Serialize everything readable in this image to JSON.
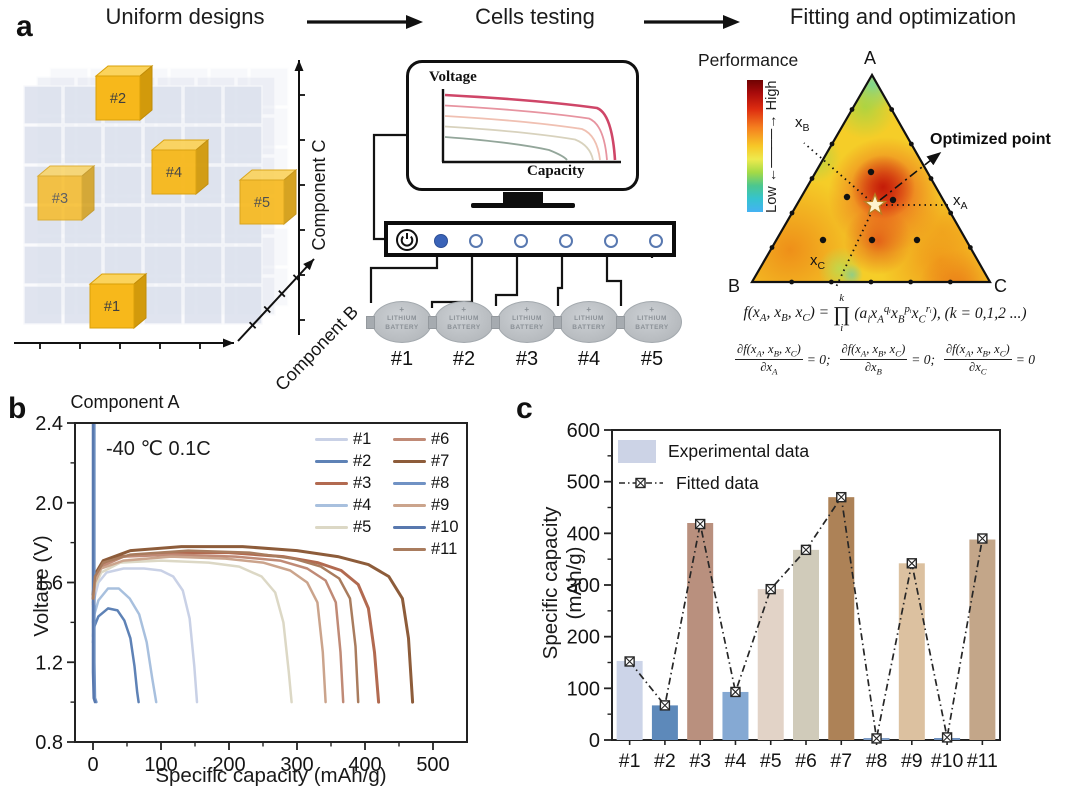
{
  "panel_a": {
    "label": "a",
    "step_titles": [
      "Uniform designs",
      "Cells testing",
      "Fitting and optimization"
    ],
    "lattice": {
      "axis_a_label": "Component A",
      "axis_b_label": "Component B",
      "axis_c_label": "Component C",
      "cube_labels": [
        "#1",
        "#2",
        "#3",
        "#4",
        "#5"
      ]
    },
    "monitor": {
      "ylabel": "Voltage",
      "xlabel": "Capacity",
      "curve_colors": [
        "#cf4668",
        "#e794a0",
        "#f0c0b2",
        "#d8d2bd",
        "#93a69a"
      ]
    },
    "tester": {
      "power_led_color": "#3a63b8",
      "battery_plus": "+",
      "battery_line1": "LITHIUM",
      "battery_line2": "BATTERY",
      "battery_labels": [
        "#1",
        "#2",
        "#3",
        "#4",
        "#5"
      ]
    },
    "ternary": {
      "colorbar_title": "Performance",
      "colorbar_high": "──→ High",
      "colorbar_low": "Low ←──",
      "vertex_top": "A",
      "vertex_left": "B",
      "vertex_right": "C",
      "xa": "x~A~",
      "xb": "x~B~",
      "xc": "x~C~",
      "optimized_label": "Optimized point"
    },
    "equations": {
      "prod_top": "k",
      "prod_symbol": "∏",
      "prod_bottom": "i",
      "line1_lhs": "f(x~A~, x~B~, x~C~) =",
      "line1_rhs": "(a~i~x~A~^qᵢ^x~B~^pᵢ^x~C~^rᵢ^), (k = 0,1,2 ...)",
      "derivatives": [
        {
          "num": "∂f(x~A~, x~B~, x~C~)",
          "den": "∂x~A~",
          "tail": "= 0;"
        },
        {
          "num": "∂f(x~A~, x~B~, x~C~)",
          "den": "∂x~B~",
          "tail": "= 0;"
        },
        {
          "num": "∂f(x~A~, x~B~, x~C~)",
          "den": "∂x~C~",
          "tail": "= 0"
        }
      ]
    }
  },
  "panel_b": {
    "label": "b"
  },
  "panel_c": {
    "label": "c"
  },
  "chart_data": [
    {
      "id": "low_temperature_discharge_curves",
      "type": "line",
      "annotation": "-40 ℃ 0.1C",
      "xlabel": "Specific capacity (mAh/g)",
      "ylabel": "Voltage (V)",
      "xlim": [
        -30,
        550
      ],
      "ylim": [
        0.8,
        2.4
      ],
      "xticks": [
        "0",
        "100",
        "200",
        "300",
        "400",
        "500"
      ],
      "yticks": [
        "0.8",
        "1.2",
        "1.6",
        "2.0",
        "2.4"
      ],
      "legend_position": "top-right",
      "series": [
        {
          "name": "#1",
          "color": "#c9d1e6",
          "points": [
            [
              0,
              1.4
            ],
            [
              2,
              1.52
            ],
            [
              8,
              1.6
            ],
            [
              20,
              1.65
            ],
            [
              45,
              1.67
            ],
            [
              75,
              1.67
            ],
            [
              100,
              1.66
            ],
            [
              118,
              1.63
            ],
            [
              132,
              1.56
            ],
            [
              142,
              1.42
            ],
            [
              149,
              1.18
            ],
            [
              153,
              1.0
            ]
          ]
        },
        {
          "name": "#2",
          "color": "#5e82b6",
          "points": [
            [
              0,
              1.3
            ],
            [
              2,
              1.38
            ],
            [
              8,
              1.43
            ],
            [
              22,
              1.47
            ],
            [
              36,
              1.46
            ],
            [
              46,
              1.41
            ],
            [
              55,
              1.32
            ],
            [
              61,
              1.18
            ],
            [
              65,
              1.05
            ],
            [
              67,
              1.0
            ]
          ]
        },
        {
          "name": "#3",
          "color": "#b26a50",
          "points": [
            [
              0,
              1.52
            ],
            [
              3,
              1.62
            ],
            [
              12,
              1.68
            ],
            [
              40,
              1.73
            ],
            [
              110,
              1.75
            ],
            [
              200,
              1.75
            ],
            [
              280,
              1.73
            ],
            [
              330,
              1.7
            ],
            [
              365,
              1.66
            ],
            [
              390,
              1.59
            ],
            [
              405,
              1.47
            ],
            [
              414,
              1.25
            ],
            [
              420,
              1.0
            ]
          ]
        },
        {
          "name": "#4",
          "color": "#a8c0de",
          "points": [
            [
              0,
              1.33
            ],
            [
              2,
              1.44
            ],
            [
              8,
              1.51
            ],
            [
              22,
              1.57
            ],
            [
              38,
              1.57
            ],
            [
              54,
              1.52
            ],
            [
              68,
              1.44
            ],
            [
              79,
              1.3
            ],
            [
              87,
              1.12
            ],
            [
              93,
              1.0
            ]
          ]
        },
        {
          "name": "#5",
          "color": "#dcd8c5",
          "points": [
            [
              0,
              1.48
            ],
            [
              3,
              1.58
            ],
            [
              12,
              1.65
            ],
            [
              40,
              1.7
            ],
            [
              100,
              1.71
            ],
            [
              170,
              1.7
            ],
            [
              215,
              1.68
            ],
            [
              248,
              1.63
            ],
            [
              268,
              1.55
            ],
            [
              280,
              1.4
            ],
            [
              288,
              1.15
            ],
            [
              292,
              1.0
            ]
          ]
        },
        {
          "name": "#6",
          "color": "#c08a76",
          "points": [
            [
              0,
              1.5
            ],
            [
              3,
              1.61
            ],
            [
              12,
              1.68
            ],
            [
              45,
              1.73
            ],
            [
              120,
              1.74
            ],
            [
              210,
              1.73
            ],
            [
              275,
              1.71
            ],
            [
              315,
              1.67
            ],
            [
              342,
              1.61
            ],
            [
              357,
              1.5
            ],
            [
              364,
              1.25
            ],
            [
              368,
              1.0
            ]
          ]
        },
        {
          "name": "#7",
          "color": "#8d5c3a",
          "points": [
            [
              0,
              1.54
            ],
            [
              3,
              1.64
            ],
            [
              15,
              1.71
            ],
            [
              55,
              1.76
            ],
            [
              130,
              1.78
            ],
            [
              220,
              1.78
            ],
            [
              300,
              1.76
            ],
            [
              360,
              1.73
            ],
            [
              405,
              1.69
            ],
            [
              435,
              1.63
            ],
            [
              455,
              1.52
            ],
            [
              464,
              1.32
            ],
            [
              470,
              1.0
            ]
          ]
        },
        {
          "name": "#8",
          "color": "#7092c4",
          "points": [
            [
              2,
              2.4
            ],
            [
              2,
              1.2
            ],
            [
              3,
              1.02
            ],
            [
              5,
              1.0
            ]
          ]
        },
        {
          "name": "#9",
          "color": "#cba48c",
          "points": [
            [
              0,
              1.49
            ],
            [
              3,
              1.6
            ],
            [
              12,
              1.67
            ],
            [
              45,
              1.71
            ],
            [
              115,
              1.73
            ],
            [
              195,
              1.72
            ],
            [
              250,
              1.7
            ],
            [
              290,
              1.66
            ],
            [
              315,
              1.6
            ],
            [
              330,
              1.5
            ],
            [
              338,
              1.25
            ],
            [
              342,
              1.0
            ]
          ]
        },
        {
          "name": "#10",
          "color": "#5878ae",
          "points": [
            [
              0,
              2.4
            ],
            [
              0,
              1.15
            ],
            [
              1,
              1.02
            ],
            [
              3,
              1.0
            ]
          ]
        },
        {
          "name": "#11",
          "color": "#a97c5e",
          "points": [
            [
              0,
              1.52
            ],
            [
              3,
              1.63
            ],
            [
              15,
              1.7
            ],
            [
              55,
              1.74
            ],
            [
              140,
              1.76
            ],
            [
              230,
              1.75
            ],
            [
              295,
              1.72
            ],
            [
              335,
              1.68
            ],
            [
              362,
              1.62
            ],
            [
              378,
              1.52
            ],
            [
              386,
              1.28
            ],
            [
              390,
              1.0
            ]
          ]
        }
      ]
    },
    {
      "id": "specific_capacity_comparison",
      "type": "bar",
      "ylabel": "Specific capacity (mAh/g)",
      "ylim": [
        0,
        600
      ],
      "yticks": [
        "0",
        "100",
        "200",
        "300",
        "400",
        "500",
        "600"
      ],
      "categories": [
        "#1",
        "#2",
        "#3",
        "#4",
        "#5",
        "#6",
        "#7",
        "#8",
        "#9",
        "#10",
        "#11"
      ],
      "series": [
        {
          "name": "Experimental data",
          "type": "bar",
          "values": [
            153,
            67,
            420,
            93,
            292,
            368,
            470,
            2,
            342,
            3,
            388
          ],
          "colors": [
            "#ccd4e8",
            "#5d89ba",
            "#b9907e",
            "#85a9d3",
            "#e2d3c7",
            "#d0cbba",
            "#ad8257",
            "#7f9dc6",
            "#dcc1a0",
            "#6f90bd",
            "#c3a689"
          ]
        },
        {
          "name": "Fitted data",
          "type": "line",
          "line_style": "dash-dot",
          "marker": "boxed-x",
          "color": "#262626",
          "values": [
            152,
            67,
            418,
            93,
            292,
            368,
            470,
            3,
            342,
            5,
            390
          ]
        }
      ],
      "legend": [
        "Experimental data",
        "Fitted data"
      ],
      "legend_swatch_color": "#ccd3e6"
    }
  ]
}
